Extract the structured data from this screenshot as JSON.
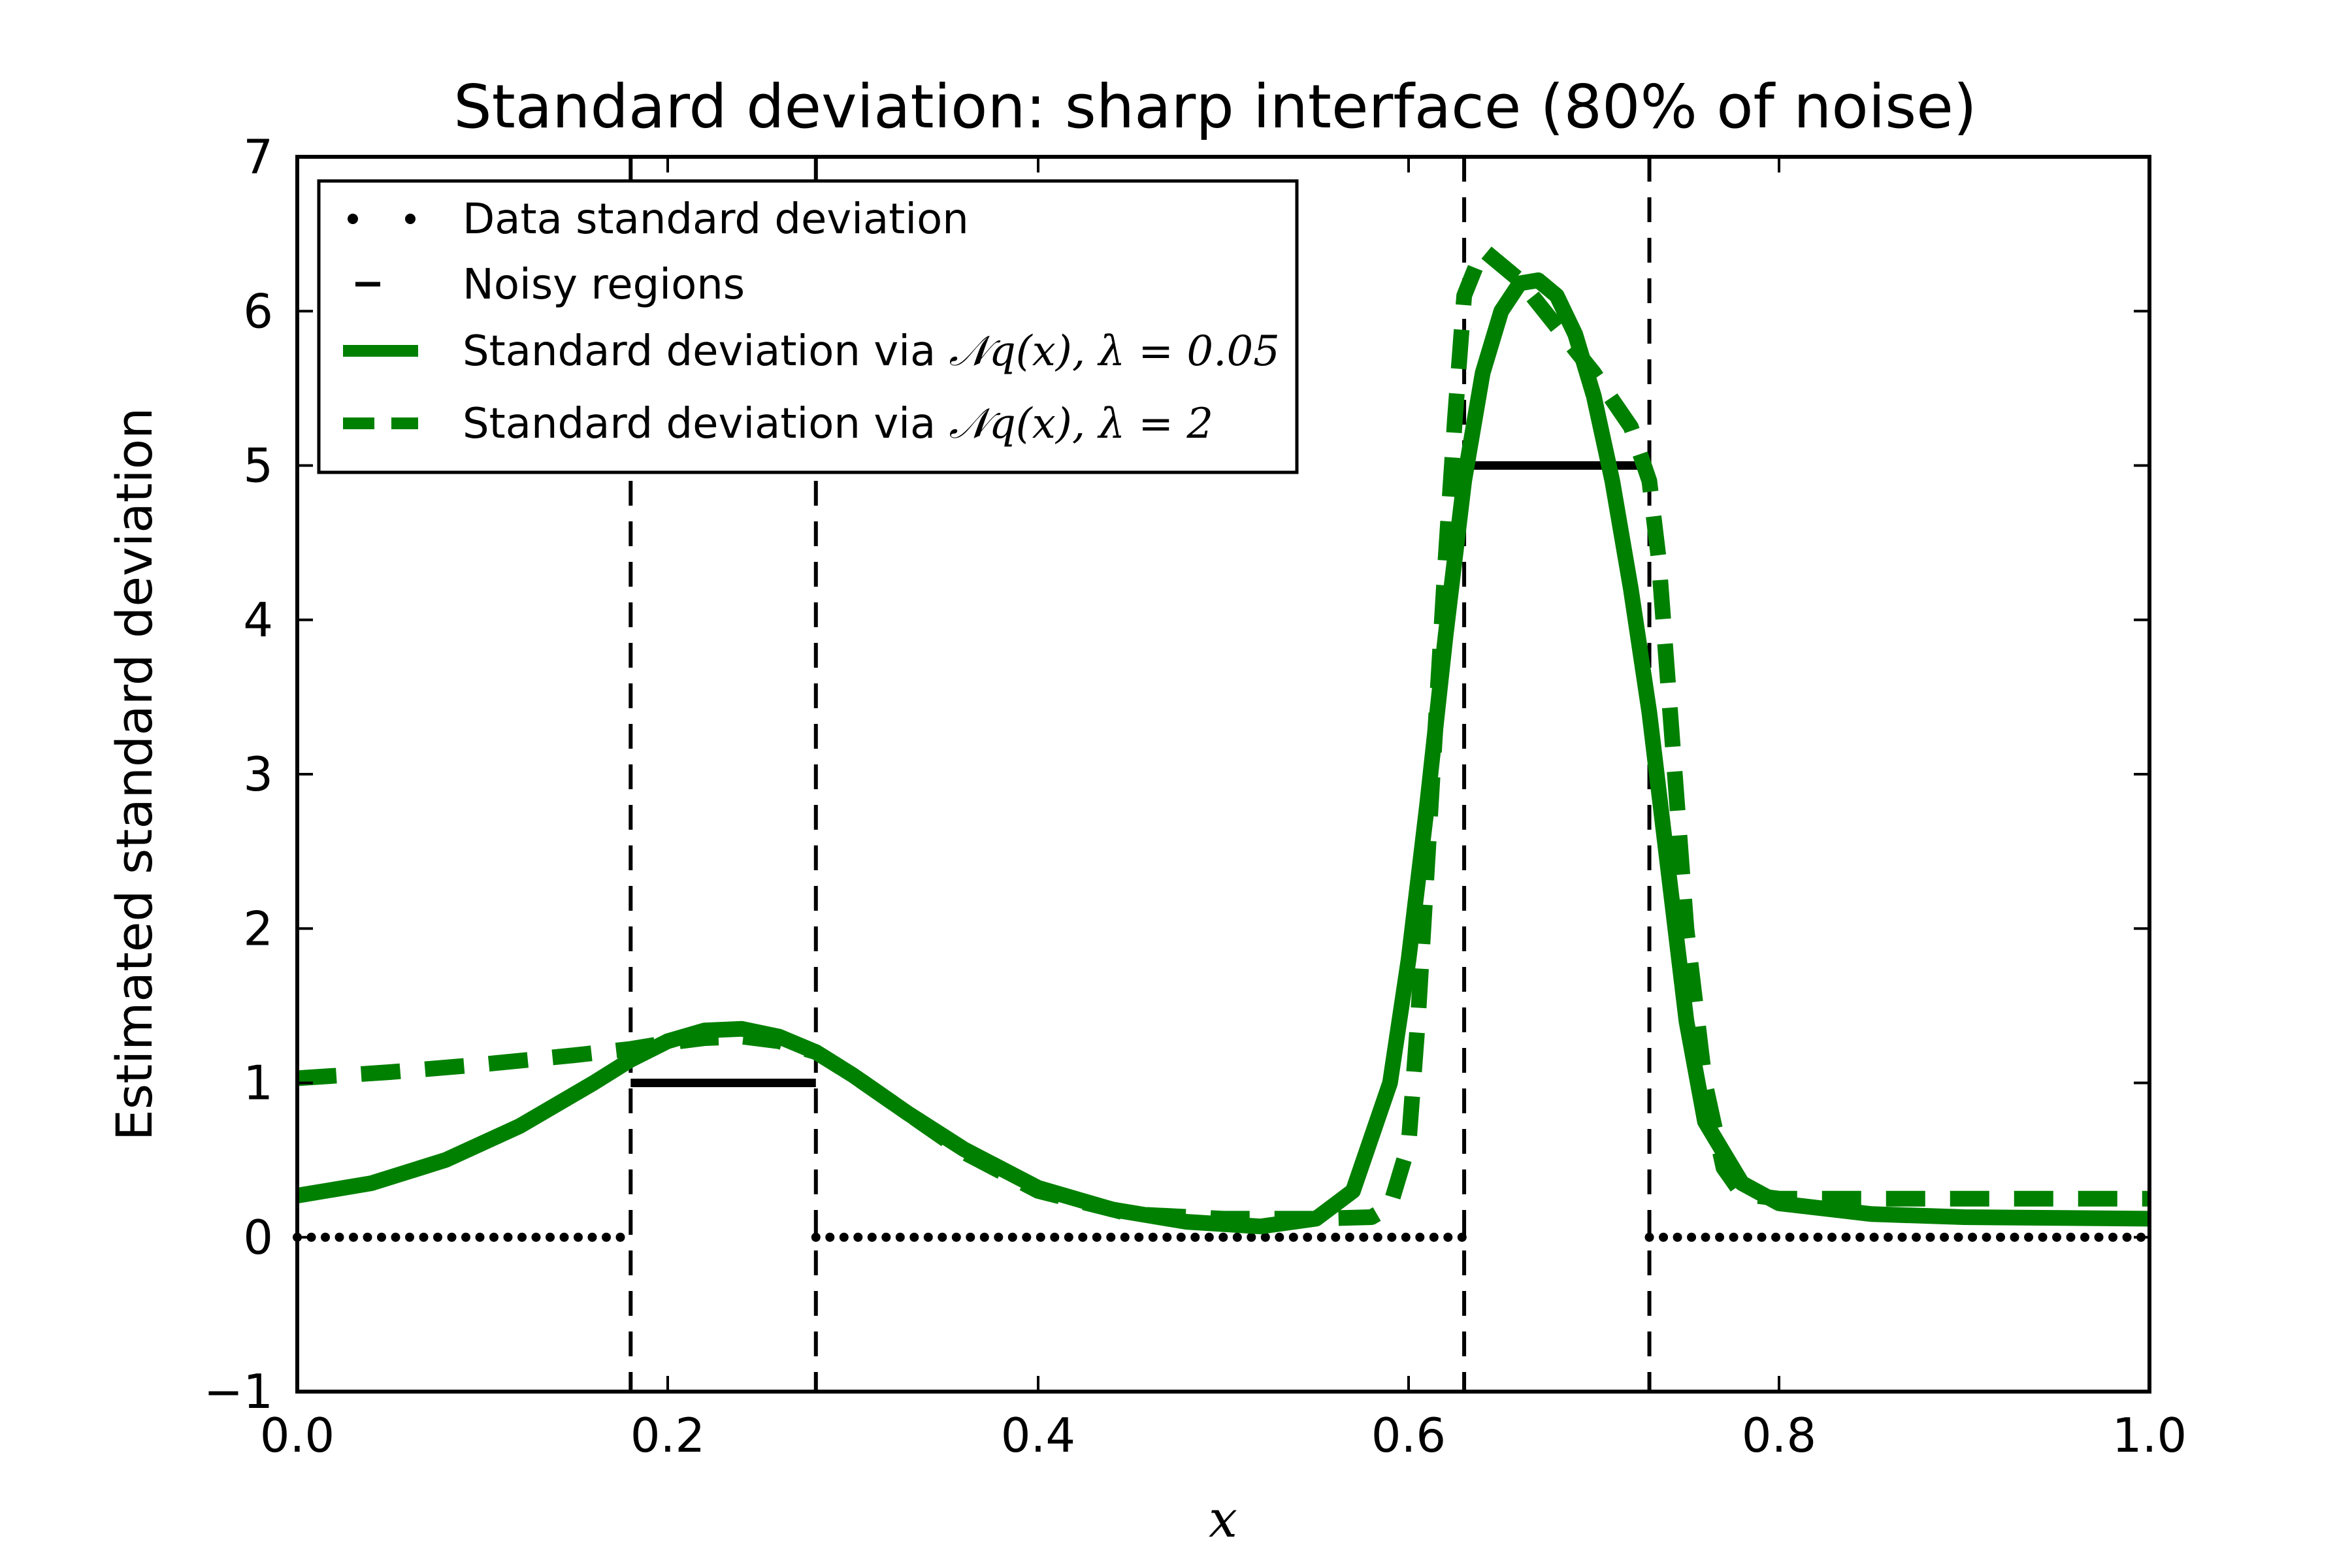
{
  "chart_data": {
    "type": "line",
    "title": "Standard deviation: sharp interface (80% of noise)",
    "xlabel": "x",
    "ylabel": "Estimated standard deviation",
    "xlim": [
      0.0,
      1.0
    ],
    "ylim": [
      -1,
      7
    ],
    "xticks": [
      0.0,
      0.2,
      0.4,
      0.6,
      0.8,
      1.0
    ],
    "xtick_labels": [
      "0.0",
      "0.2",
      "0.4",
      "0.6",
      "0.8",
      "1.0"
    ],
    "yticks": [
      -1,
      0,
      1,
      2,
      3,
      4,
      5,
      6,
      7
    ],
    "ytick_labels": [
      "−1",
      "0",
      "1",
      "2",
      "3",
      "4",
      "5",
      "6",
      "7"
    ],
    "grid": false,
    "legend_position": "top-left",
    "noisy_region_boundaries": [
      0.18,
      0.28,
      0.63,
      0.73
    ],
    "series": [
      {
        "name": "Data standard deviation",
        "style": "dotted",
        "color": "#000000",
        "segments": [
          {
            "x": [
              0.0,
              0.18
            ],
            "y": [
              0,
              0
            ]
          },
          {
            "x": [
              0.28,
              0.63
            ],
            "y": [
              0,
              0
            ]
          },
          {
            "x": [
              0.73,
              1.0
            ],
            "y": [
              0,
              0
            ]
          }
        ]
      },
      {
        "name": "Noisy regions",
        "style": "solid-short",
        "color": "#000000",
        "segments": [
          {
            "x": [
              0.18,
              0.28
            ],
            "y": [
              1,
              1
            ]
          },
          {
            "x": [
              0.63,
              0.73
            ],
            "y": [
              5,
              5
            ]
          }
        ]
      },
      {
        "name_prefix": "Standard deviation via ",
        "name_math": "𝒩q(x),  λ = 0.05",
        "style": "solid",
        "color": "#008000",
        "x": [
          0.0,
          0.04,
          0.08,
          0.12,
          0.16,
          0.18,
          0.2,
          0.22,
          0.24,
          0.26,
          0.28,
          0.3,
          0.33,
          0.36,
          0.4,
          0.44,
          0.48,
          0.52,
          0.55,
          0.57,
          0.59,
          0.6,
          0.61,
          0.62,
          0.63,
          0.64,
          0.65,
          0.66,
          0.67,
          0.68,
          0.69,
          0.7,
          0.71,
          0.72,
          0.73,
          0.74,
          0.75,
          0.76,
          0.78,
          0.8,
          0.85,
          0.9,
          1.0
        ],
        "y": [
          0.27,
          0.35,
          0.5,
          0.72,
          1.0,
          1.15,
          1.27,
          1.34,
          1.35,
          1.3,
          1.2,
          1.05,
          0.8,
          0.57,
          0.32,
          0.18,
          0.1,
          0.07,
          0.12,
          0.3,
          1.0,
          1.8,
          2.8,
          3.9,
          4.9,
          5.6,
          6.0,
          6.18,
          6.2,
          6.1,
          5.85,
          5.45,
          4.9,
          4.2,
          3.4,
          2.4,
          1.4,
          0.75,
          0.35,
          0.22,
          0.15,
          0.13,
          0.12
        ]
      },
      {
        "name_prefix": "Standard deviation via ",
        "name_math": "𝒩q(x),  λ = 2",
        "style": "dashed",
        "color": "#008000",
        "x": [
          0.0,
          0.05,
          0.1,
          0.15,
          0.18,
          0.2,
          0.22,
          0.24,
          0.26,
          0.28,
          0.3,
          0.33,
          0.36,
          0.4,
          0.45,
          0.5,
          0.55,
          0.58,
          0.59,
          0.6,
          0.605,
          0.61,
          0.615,
          0.62,
          0.625,
          0.63,
          0.64,
          0.66,
          0.68,
          0.7,
          0.72,
          0.73,
          0.735,
          0.74,
          0.745,
          0.75,
          0.76,
          0.77,
          0.78,
          0.8,
          0.85,
          1.0
        ],
        "y": [
          1.03,
          1.07,
          1.12,
          1.18,
          1.22,
          1.26,
          1.29,
          1.3,
          1.27,
          1.2,
          1.05,
          0.8,
          0.55,
          0.3,
          0.15,
          0.12,
          0.12,
          0.13,
          0.2,
          0.6,
          1.4,
          2.4,
          3.4,
          4.4,
          5.3,
          6.1,
          6.4,
          6.2,
          5.9,
          5.6,
          5.25,
          4.9,
          4.4,
          3.6,
          2.8,
          2.0,
          1.0,
          0.45,
          0.28,
          0.25,
          0.25,
          0.25
        ]
      }
    ]
  }
}
